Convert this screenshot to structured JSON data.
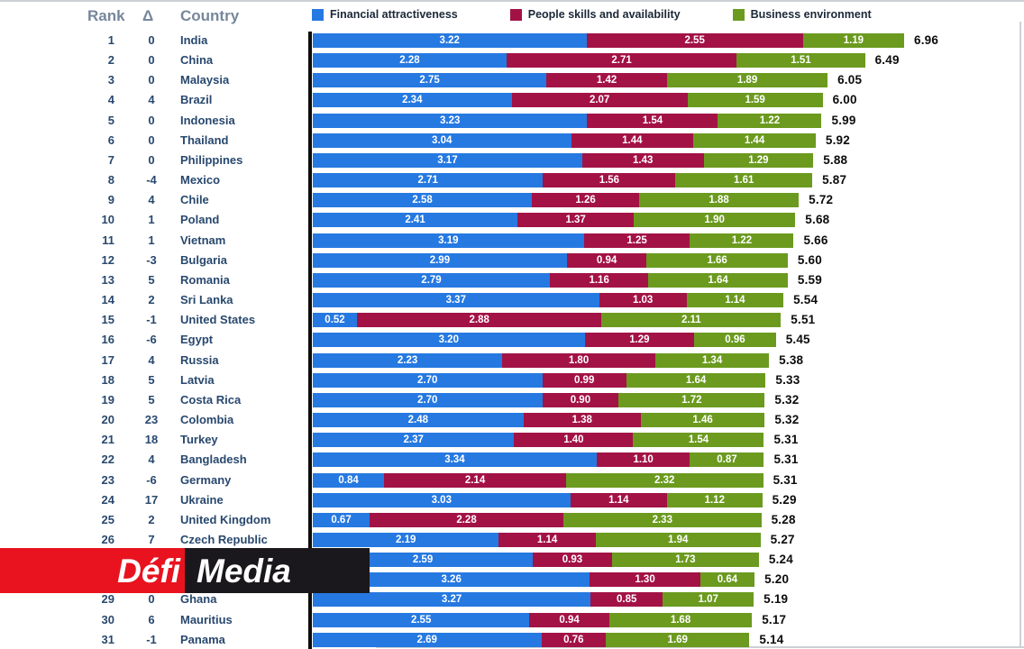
{
  "header": {
    "rank": "Rank",
    "delta": "Δ",
    "country": "Country"
  },
  "watermark": {
    "defi": "Défi",
    "media": "Media",
    "red_color": "#e8131f",
    "black_color": "#1a181c"
  },
  "colors": {
    "axis": "#0d0d0d",
    "row_text": "#28486e",
    "header_text": "#76879b",
    "total_text": "#0c0c0c"
  },
  "chart_data": {
    "type": "bar",
    "orientation": "horizontal",
    "stacked": true,
    "title": "",
    "xlabel": "",
    "ylabel": "",
    "xmax": 6.96,
    "grid": false,
    "legend_position": "top",
    "series": [
      {
        "name": "Financial attractiveness",
        "key": "financial-attractiveness",
        "color": "#2679e1"
      },
      {
        "name": "People skills and availability",
        "key": "people-skills-and-availability",
        "color": "#a31245"
      },
      {
        "name": "Business environment",
        "key": "business-environment",
        "color": "#6b9a1f"
      }
    ],
    "rows": [
      {
        "rank": "1",
        "delta": "0",
        "country": "India",
        "values": [
          3.22,
          2.55,
          1.19
        ],
        "total": 6.96
      },
      {
        "rank": "2",
        "delta": "0",
        "country": "China",
        "values": [
          2.28,
          2.71,
          1.51
        ],
        "total": 6.49
      },
      {
        "rank": "3",
        "delta": "0",
        "country": "Malaysia",
        "values": [
          2.75,
          1.42,
          1.89
        ],
        "total": 6.05
      },
      {
        "rank": "4",
        "delta": "4",
        "country": "Brazil",
        "values": [
          2.34,
          2.07,
          1.59
        ],
        "total": 6.0
      },
      {
        "rank": "5",
        "delta": "0",
        "country": "Indonesia",
        "values": [
          3.23,
          1.54,
          1.22
        ],
        "total": 5.99
      },
      {
        "rank": "6",
        "delta": "0",
        "country": "Thailand",
        "values": [
          3.04,
          1.44,
          1.44
        ],
        "total": 5.92
      },
      {
        "rank": "7",
        "delta": "0",
        "country": "Philippines",
        "values": [
          3.17,
          1.43,
          1.29
        ],
        "total": 5.88
      },
      {
        "rank": "8",
        "delta": "-4",
        "country": "Mexico",
        "values": [
          2.71,
          1.56,
          1.61
        ],
        "total": 5.87
      },
      {
        "rank": "9",
        "delta": "4",
        "country": "Chile",
        "values": [
          2.58,
          1.26,
          1.88
        ],
        "total": 5.72
      },
      {
        "rank": "10",
        "delta": "1",
        "country": "Poland",
        "values": [
          2.41,
          1.37,
          1.9
        ],
        "total": 5.68
      },
      {
        "rank": "11",
        "delta": "1",
        "country": "Vietnam",
        "values": [
          3.19,
          1.25,
          1.22
        ],
        "total": 5.66
      },
      {
        "rank": "12",
        "delta": "-3",
        "country": "Bulgaria",
        "values": [
          2.99,
          0.94,
          1.66
        ],
        "total": 5.6
      },
      {
        "rank": "13",
        "delta": "5",
        "country": "Romania",
        "values": [
          2.79,
          1.16,
          1.64
        ],
        "total": 5.59
      },
      {
        "rank": "14",
        "delta": "2",
        "country": "Sri Lanka",
        "values": [
          3.37,
          1.03,
          1.14
        ],
        "total": 5.54
      },
      {
        "rank": "15",
        "delta": "-1",
        "country": "United States",
        "values": [
          0.52,
          2.88,
          2.11
        ],
        "total": 5.51
      },
      {
        "rank": "16",
        "delta": "-6",
        "country": "Egypt",
        "values": [
          3.2,
          1.29,
          0.96
        ],
        "total": 5.45
      },
      {
        "rank": "17",
        "delta": "4",
        "country": "Russia",
        "values": [
          2.23,
          1.8,
          1.34
        ],
        "total": 5.38
      },
      {
        "rank": "18",
        "delta": "5",
        "country": "Latvia",
        "values": [
          2.7,
          0.99,
          1.64
        ],
        "total": 5.33
      },
      {
        "rank": "19",
        "delta": "5",
        "country": "Costa Rica",
        "values": [
          2.7,
          0.9,
          1.72
        ],
        "total": 5.32
      },
      {
        "rank": "20",
        "delta": "23",
        "country": "Colombia",
        "values": [
          2.48,
          1.38,
          1.46
        ],
        "total": 5.32
      },
      {
        "rank": "21",
        "delta": "18",
        "country": "Turkey",
        "values": [
          2.37,
          1.4,
          1.54
        ],
        "total": 5.31
      },
      {
        "rank": "22",
        "delta": "4",
        "country": "Bangladesh",
        "values": [
          3.34,
          1.1,
          0.87
        ],
        "total": 5.31
      },
      {
        "rank": "23",
        "delta": "-6",
        "country": "Germany",
        "values": [
          0.84,
          2.14,
          2.32
        ],
        "total": 5.31
      },
      {
        "rank": "24",
        "delta": "17",
        "country": "Ukraine",
        "values": [
          3.03,
          1.14,
          1.12
        ],
        "total": 5.29
      },
      {
        "rank": "25",
        "delta": "2",
        "country": "United Kingdom",
        "values": [
          0.67,
          2.28,
          2.33
        ],
        "total": 5.28
      },
      {
        "rank": "26",
        "delta": "7",
        "country": "Czech Republic",
        "values": [
          2.19,
          1.14,
          1.94
        ],
        "total": 5.27
      },
      {
        "rank": "",
        "delta": "",
        "country": "",
        "values": [
          2.59,
          0.93,
          1.73
        ],
        "total": 5.24
      },
      {
        "rank": "",
        "delta": "",
        "country": "",
        "values": [
          3.26,
          1.3,
          0.64
        ],
        "total": 5.2
      },
      {
        "rank": "29",
        "delta": "0",
        "country": "Ghana",
        "values": [
          3.27,
          0.85,
          1.07
        ],
        "total": 5.19
      },
      {
        "rank": "30",
        "delta": "6",
        "country": "Mauritius",
        "values": [
          2.55,
          0.94,
          1.68
        ],
        "total": 5.17
      },
      {
        "rank": "31",
        "delta": "-1",
        "country": "Panama",
        "values": [
          2.69,
          0.76,
          1.69
        ],
        "total": 5.14
      }
    ]
  }
}
